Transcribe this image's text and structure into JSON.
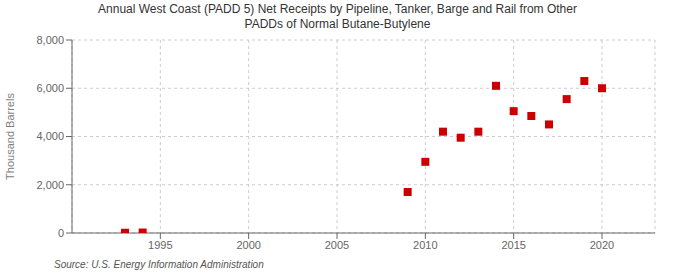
{
  "chart_data": {
    "type": "scatter",
    "title": "Annual West Coast (PADD 5) Net Receipts by Pipeline, Tanker, Barge and Rail from Other\nPADDs of Normal Butane-Butylene",
    "ylabel": "Thousand Barrels",
    "annotations": [
      "Source: U.S. Energy Information Administration"
    ],
    "x": [
      1993,
      1994,
      2009,
      2010,
      2011,
      2012,
      2013,
      2014,
      2015,
      2016,
      2017,
      2018,
      2019,
      2020
    ],
    "values": [
      10,
      20,
      1700,
      2950,
      4200,
      3950,
      4200,
      6100,
      5050,
      4850,
      4500,
      5550,
      6300,
      6000
    ],
    "color": "#cc0000",
    "marker": "square",
    "xlim": [
      1990,
      2023
    ],
    "ylim": [
      0,
      8000
    ],
    "xticks": [
      1995,
      2000,
      2005,
      2010,
      2015,
      2020
    ],
    "yticks": [
      0,
      {
        "value": 2000,
        "label": "2,000"
      },
      {
        "value": 4000,
        "label": "4,000"
      },
      {
        "value": 6000,
        "label": "6,000"
      },
      {
        "value": 8000,
        "label": "8,000"
      }
    ],
    "grid": true
  }
}
